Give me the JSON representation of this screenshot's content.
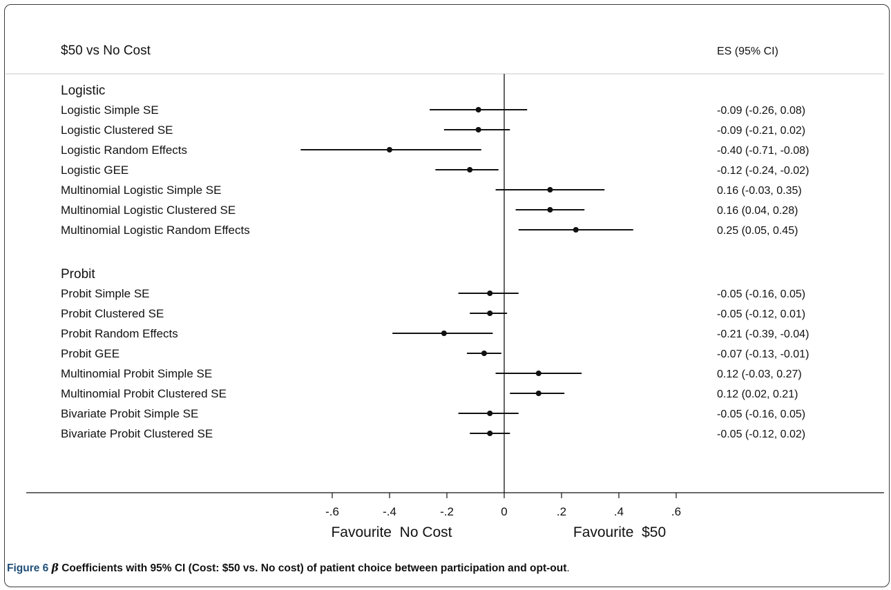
{
  "chart_data": {
    "type": "forest",
    "title": "$50 vs No Cost",
    "es_header": "ES (95% CI)",
    "xlim": [
      -0.85,
      0.85
    ],
    "x_ticks": [
      {
        "value": -0.6,
        "label": "-.6"
      },
      {
        "value": -0.4,
        "label": "-.4"
      },
      {
        "value": -0.2,
        "label": "-.2"
      },
      {
        "value": 0,
        "label": "0"
      },
      {
        "value": 0.2,
        "label": ".2"
      },
      {
        "value": 0.4,
        "label": ".4"
      },
      {
        "value": 0.6,
        "label": ".6"
      }
    ],
    "xlabel_left": "Favourite  No Cost",
    "xlabel_right": "Favourite  $50",
    "groups": [
      {
        "label": "Logistic",
        "rows": [
          {
            "label": "Logistic Simple SE",
            "es": -0.09,
            "lo": -0.26,
            "hi": 0.08,
            "text": "-0.09 (-0.26, 0.08)"
          },
          {
            "label": "Logistic Clustered SE",
            "es": -0.09,
            "lo": -0.21,
            "hi": 0.02,
            "text": "-0.09 (-0.21, 0.02)"
          },
          {
            "label": "Logistic Random Effects",
            "es": -0.4,
            "lo": -0.71,
            "hi": -0.08,
            "text": "-0.40 (-0.71, -0.08)"
          },
          {
            "label": "Logistic GEE",
            "es": -0.12,
            "lo": -0.24,
            "hi": -0.02,
            "text": "-0.12 (-0.24, -0.02)"
          },
          {
            "label": "Multinomial Logistic Simple SE",
            "es": 0.16,
            "lo": -0.03,
            "hi": 0.35,
            "text": "0.16 (-0.03, 0.35)"
          },
          {
            "label": "Multinomial Logistic Clustered SE",
            "es": 0.16,
            "lo": 0.04,
            "hi": 0.28,
            "text": "0.16 (0.04, 0.28)"
          },
          {
            "label": "Multinomial Logistic Random Effects",
            "es": 0.25,
            "lo": 0.05,
            "hi": 0.45,
            "text": "0.25 (0.05, 0.45)"
          }
        ]
      },
      {
        "label": "Probit",
        "rows": [
          {
            "label": "Probit Simple SE",
            "es": -0.05,
            "lo": -0.16,
            "hi": 0.05,
            "text": "-0.05 (-0.16, 0.05)"
          },
          {
            "label": "Probit Clustered SE",
            "es": -0.05,
            "lo": -0.12,
            "hi": 0.01,
            "text": "-0.05 (-0.12, 0.01)"
          },
          {
            "label": "Probit Random Effects",
            "es": -0.21,
            "lo": -0.39,
            "hi": -0.04,
            "text": "-0.21 (-0.39, -0.04)"
          },
          {
            "label": "Probit GEE",
            "es": -0.07,
            "lo": -0.13,
            "hi": -0.01,
            "text": "-0.07 (-0.13, -0.01)"
          },
          {
            "label": "Multinomial Probit Simple SE",
            "es": 0.12,
            "lo": -0.03,
            "hi": 0.27,
            "text": "0.12 (-0.03, 0.27)"
          },
          {
            "label": "Multinomial Probit Clustered SE",
            "es": 0.12,
            "lo": 0.02,
            "hi": 0.21,
            "text": "0.12 (0.02, 0.21)"
          },
          {
            "label": "Bivariate Probit Simple SE",
            "es": -0.05,
            "lo": -0.16,
            "hi": 0.05,
            "text": "-0.05 (-0.16, 0.05)"
          },
          {
            "label": "Bivariate Probit Clustered SE",
            "es": -0.05,
            "lo": -0.12,
            "hi": 0.02,
            "text": "-0.05 (-0.12, 0.02)"
          }
        ]
      }
    ]
  },
  "caption": {
    "figure_label": "Figure 6",
    "beta_symbol": "β",
    "title": "Coefficients with 95% CI (Cost: $50 vs. No cost) of patient choice between participation and opt-out",
    "end_mark": "."
  }
}
